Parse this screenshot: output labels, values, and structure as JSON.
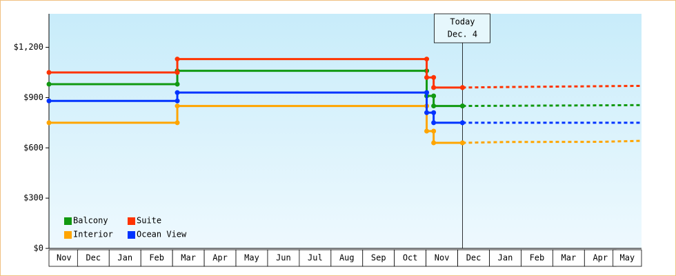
{
  "chart_data": {
    "type": "step-line",
    "xlim": [
      0.1,
      18.8
    ],
    "xticks": [
      {
        "value": 0.55,
        "label": "Nov"
      },
      {
        "value": 1.5,
        "label": "Dec"
      },
      {
        "value": 2.5,
        "label": "Jan"
      },
      {
        "value": 3.5,
        "label": "Feb"
      },
      {
        "value": 4.5,
        "label": "Mar"
      },
      {
        "value": 5.5,
        "label": "Apr"
      },
      {
        "value": 6.5,
        "label": "May"
      },
      {
        "value": 7.5,
        "label": "Jun"
      },
      {
        "value": 8.5,
        "label": "Jul"
      },
      {
        "value": 9.5,
        "label": "Aug"
      },
      {
        "value": 10.5,
        "label": "Sep"
      },
      {
        "value": 11.5,
        "label": "Oct"
      },
      {
        "value": 12.5,
        "label": "Nov"
      },
      {
        "value": 13.5,
        "label": "Dec"
      },
      {
        "value": 14.5,
        "label": "Jan"
      },
      {
        "value": 15.5,
        "label": "Feb"
      },
      {
        "value": 16.5,
        "label": "Mar"
      },
      {
        "value": 17.5,
        "label": "Apr"
      },
      {
        "value": 18.4,
        "label": "May"
      }
    ],
    "ylim": [
      0,
      1400
    ],
    "yticks": [
      {
        "value": 0,
        "label": "$0"
      },
      {
        "value": 300,
        "label": "$300"
      },
      {
        "value": 600,
        "label": "$600"
      },
      {
        "value": 900,
        "label": "$900"
      },
      {
        "value": 1200,
        "label": "$1,200"
      }
    ],
    "legend": "lower-left",
    "annotation": {
      "x": 13.15,
      "lines": [
        "Today",
        "Dec. 4"
      ]
    },
    "series": [
      {
        "name": "Balcony",
        "color": "#119911",
        "x": [
          0.1,
          4.15,
          12.02,
          12.24,
          13.15
        ],
        "values": [
          980,
          1060,
          910,
          850,
          850
        ],
        "forecast": {
          "x": [
            13.15,
            15.5,
            18.8
          ],
          "values": [
            850,
            852,
            855
          ]
        }
      },
      {
        "name": "Suite",
        "color": "#ff3300",
        "x": [
          0.1,
          4.15,
          12.02,
          12.24,
          13.15
        ],
        "values": [
          1050,
          1130,
          1020,
          960,
          960
        ],
        "forecast": {
          "x": [
            13.15,
            14.5,
            18.8
          ],
          "values": [
            960,
            963,
            970
          ]
        }
      },
      {
        "name": "Interior",
        "color": "#ffa500",
        "x": [
          0.1,
          4.15,
          12.02,
          12.24,
          13.15
        ],
        "values": [
          750,
          850,
          700,
          630,
          630
        ],
        "forecast": {
          "x": [
            13.15,
            14.5,
            17.5,
            18.8
          ],
          "values": [
            630,
            635,
            636,
            642
          ]
        }
      },
      {
        "name": "Ocean View",
        "color": "#0033ff",
        "x": [
          0.1,
          4.15,
          12.02,
          12.24,
          13.15
        ],
        "values": [
          880,
          930,
          810,
          750,
          750
        ],
        "forecast": {
          "x": [
            13.15,
            18.8
          ],
          "values": [
            750,
            750
          ]
        }
      }
    ]
  }
}
